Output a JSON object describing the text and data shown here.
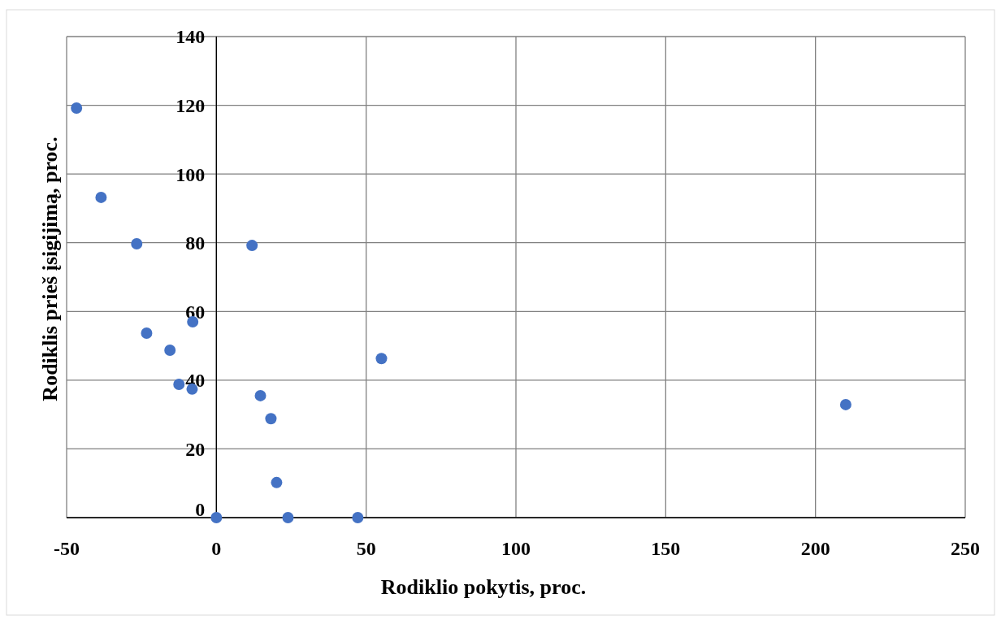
{
  "chart_data": {
    "type": "scatter",
    "xlabel": "Rodiklio pokytis, proc.",
    "ylabel": "Rodiklis prieš įsigijimą, proc.",
    "series": [
      {
        "color": "#4472c4",
        "x": [
          -46.7,
          -38.5,
          -26.6,
          11.9,
          -23.3,
          -7.9,
          -15.5,
          -12.5,
          -8.1,
          55.1,
          14.7,
          18.2,
          20.1,
          0,
          23.9,
          47.2,
          210.1
        ],
        "values": [
          119.2,
          93.2,
          79.7,
          79.2,
          53.7,
          57.0,
          48.7,
          38.8,
          37.4,
          46.3,
          35.5,
          28.8,
          10.2,
          0,
          0,
          0,
          32.9
        ]
      }
    ],
    "xlim": [
      -50,
      250
    ],
    "xticks": [
      -50,
      0,
      50,
      100,
      150,
      200,
      250
    ],
    "ylim": [
      0,
      140
    ],
    "yticks": [
      0,
      20,
      40,
      60,
      80,
      100,
      120,
      140
    ],
    "grid": true,
    "marker": "circle"
  }
}
